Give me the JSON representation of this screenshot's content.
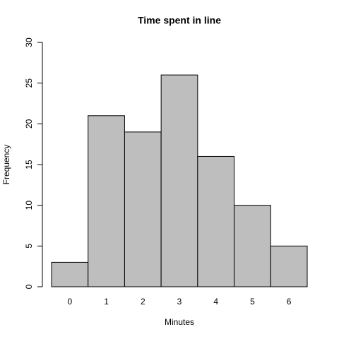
{
  "chart_data": {
    "type": "bar",
    "title": "Time spent in line",
    "x_label": "Minutes",
    "y_label": "Frequency",
    "categories": [
      "0",
      "1",
      "2",
      "3",
      "4",
      "5",
      "6"
    ],
    "values": [
      3,
      21,
      19,
      26,
      16,
      10,
      5
    ],
    "color": "#bebebe",
    "ylim": [
      0,
      30
    ],
    "yticks": [
      0,
      5,
      10,
      15,
      20,
      25,
      30
    ]
  }
}
